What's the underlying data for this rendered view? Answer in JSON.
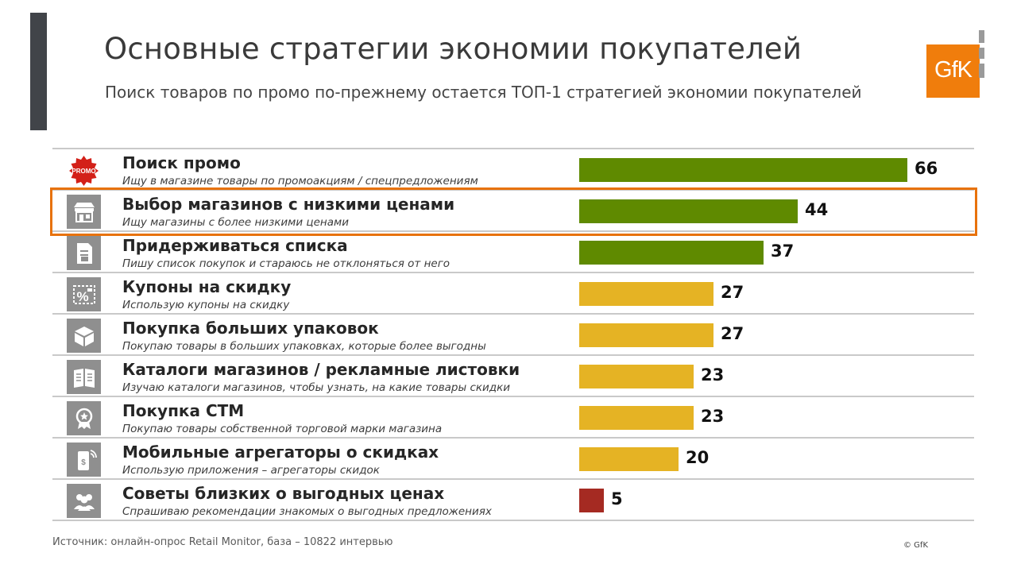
{
  "title": "Основные стратегии экономии покупателей",
  "subtitle": "Поиск товаров по промо по-прежнему остается ТОП-1 стратегией экономии покупателей",
  "logo_text": "GfK",
  "source": "Источник: онлайн-опрос Retail Monitor, база – 10822 интервью",
  "copyright": "© GfK",
  "colors": {
    "green": "#5f8a00",
    "yellow": "#e5b324",
    "red": "#a52a22",
    "highlight": "#e8720c",
    "icon_bg": "#8f8f8f",
    "accent": "#414449",
    "brand": "#f07d0c"
  },
  "chart_data": {
    "type": "bar",
    "orientation": "horizontal",
    "title": "Основные стратегии экономии покупателей",
    "subtitle": "Поиск товаров по промо по-прежнему остается ТОП-1 стратегией экономии покупателей",
    "categories": [
      "Поиск промо",
      "Выбор магазинов с низкими ценами",
      "Придерживаться списка",
      "Купоны на скидку",
      "Покупка больших упаковок",
      "Каталоги магазинов / рекламные листовки",
      "Покупка СТМ",
      "Мобильные агрегаторы о скидках",
      "Советы близких о выгодных ценах"
    ],
    "descriptions": [
      "Ищу в магазине товары по промоакциям / спецпредложениям",
      "Ищу магазины с более низкими ценами",
      "Пишу список покупок и стараюсь не отклоняться от него",
      "Использую купоны на скидку",
      "Покупаю товары в больших упаковках, которые более выгодны",
      "Изучаю каталоги магазинов, чтобы узнать, на какие товары скидки",
      "Покупаю товары собственной торговой марки магазина",
      "Использую приложения – агрегаторы скидок",
      "Спрашиваю рекомендации  знакомых о выгодных предложениях"
    ],
    "values": [
      66,
      44,
      37,
      27,
      27,
      23,
      23,
      20,
      5
    ],
    "value_labels": [
      "66",
      "44",
      "37",
      "27",
      "27",
      "23",
      "23",
      "20",
      "5"
    ],
    "bar_colors": [
      "green",
      "green",
      "green",
      "yellow",
      "yellow",
      "yellow",
      "yellow",
      "yellow",
      "red"
    ],
    "icons": [
      "promo-badge-icon",
      "storefront-icon",
      "shopping-list-icon",
      "coupon-percent-icon",
      "box-icon",
      "catalog-icon",
      "private-label-icon",
      "mobile-discount-icon",
      "people-icon"
    ],
    "highlighted_index": 1,
    "xlim": [
      0,
      66
    ],
    "legend": "none",
    "grid": false
  }
}
